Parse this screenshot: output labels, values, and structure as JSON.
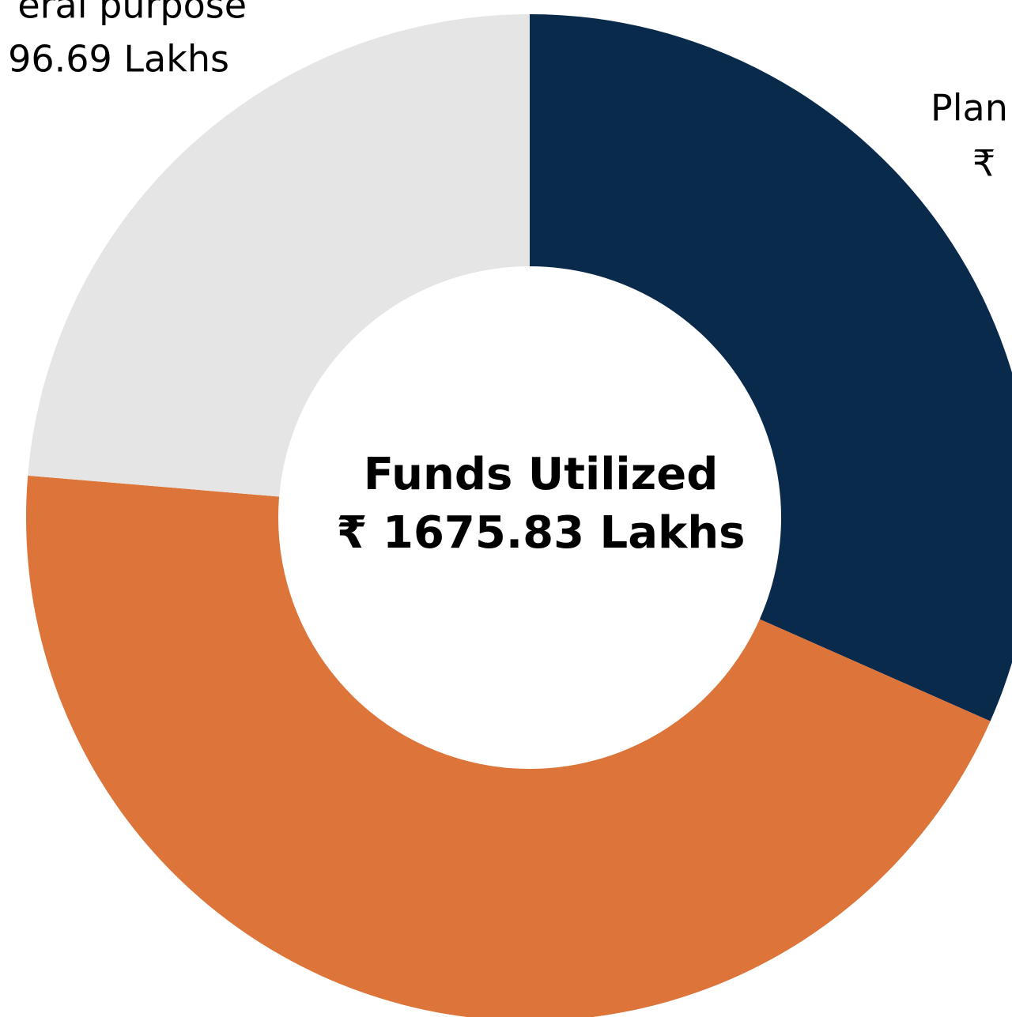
{
  "chart_data": {
    "type": "donut",
    "center_title": "Funds Utilized",
    "center_value": "₹ 1675.83 Lakhs",
    "categories": [
      "Plan",
      null,
      "eral purpose"
    ],
    "values": [
      530,
      749.14,
      396.69
    ],
    "value_labels": [
      "₹",
      null,
      "96.69 Lakhs"
    ],
    "colors": [
      "#0a2a4c",
      "#dd743a",
      "#e5e5e5"
    ]
  }
}
